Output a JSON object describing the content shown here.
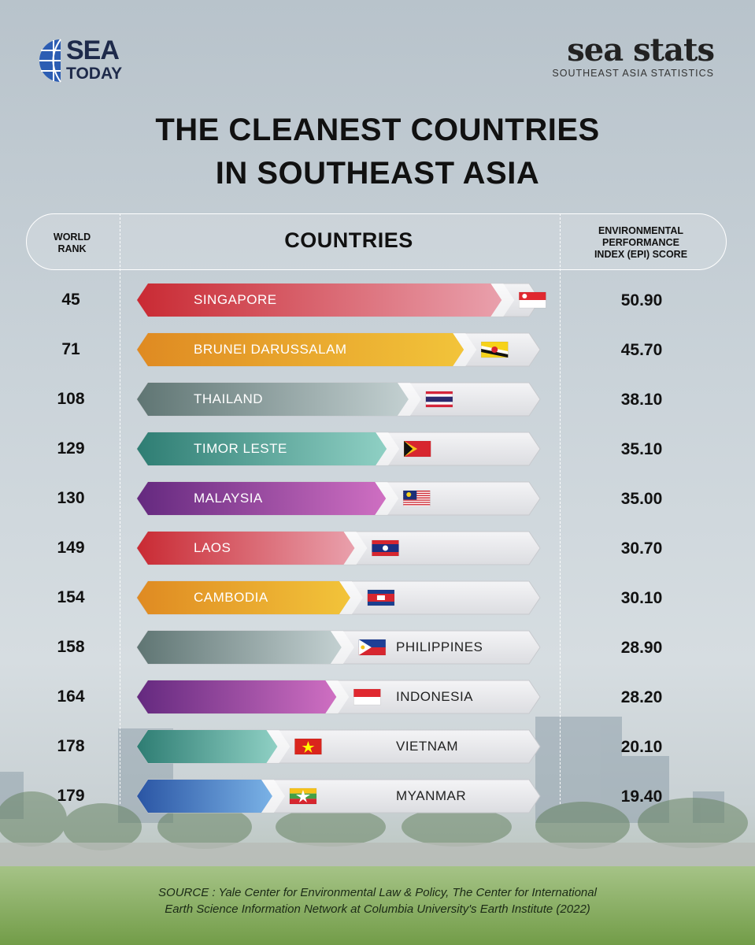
{
  "brand_left": {
    "line1": "SEA",
    "line2": "TODAY"
  },
  "brand_right": {
    "name": "sea stats",
    "tagline": "SOUTHEAST ASIA STATISTICS"
  },
  "title": {
    "line1": "THE CLEANEST COUNTRIES",
    "line2": "IN SOUTHEAST ASIA"
  },
  "header": {
    "rank_line1": "WORLD",
    "rank_line2": "RANK",
    "countries": "COUNTRIES",
    "epi_line1": "ENVIRONMENTAL",
    "epi_line2": "PERFORMANCE",
    "epi_line3": "INDEX  (EPI) SCORE"
  },
  "colors": {
    "red": "#d8383f",
    "orange": "#e5972a",
    "gray": "#6e8583",
    "teal": "#3a8c82",
    "purple": "#7a3a93",
    "blue": "#2f5fae"
  },
  "chart_data": {
    "type": "bar",
    "orientation": "horizontal",
    "xlabel": "COUNTRIES",
    "ylabel": "ENVIRONMENTAL PERFORMANCE INDEX  (EPI) SCORE",
    "categories": [
      "SINGAPORE",
      "BRUNEI DARUSSALAM",
      "THAILAND",
      "TIMOR LESTE",
      "MALAYSIA",
      "LAOS",
      "CAMBODIA",
      "PHILIPPINES",
      "INDONESIA",
      "VIETNAM",
      "MYANMAR"
    ],
    "world_rank": [
      45,
      71,
      108,
      129,
      130,
      149,
      154,
      158,
      164,
      178,
      179
    ],
    "values": [
      50.9,
      45.7,
      38.1,
      35.1,
      35.0,
      30.7,
      30.1,
      28.9,
      28.2,
      20.1,
      19.4
    ],
    "rank_labels": [
      "45",
      "71",
      "108",
      "129",
      "130",
      "149",
      "154",
      "158",
      "164",
      "178",
      "179"
    ],
    "score_labels": [
      "50.90",
      "45.70",
      "38.10",
      "35.10",
      "35.00",
      "30.70",
      "30.10",
      "28.90",
      "28.20",
      "20.10",
      "19.40"
    ],
    "bar_colors": [
      "red",
      "orange",
      "gray",
      "teal",
      "purple",
      "red",
      "orange",
      "gray",
      "purple",
      "teal",
      "blue"
    ],
    "flags": [
      "singapore",
      "brunei",
      "thailand",
      "timor-leste",
      "malaysia",
      "laos",
      "cambodia",
      "philippines",
      "indonesia",
      "vietnam",
      "myanmar"
    ]
  },
  "footer": {
    "line1": "SOURCE : Yale Center for Environmental Law & Policy, The Center for International",
    "line2": "Earth Science Information Network at Columbia University's Earth Institute (2022)"
  }
}
